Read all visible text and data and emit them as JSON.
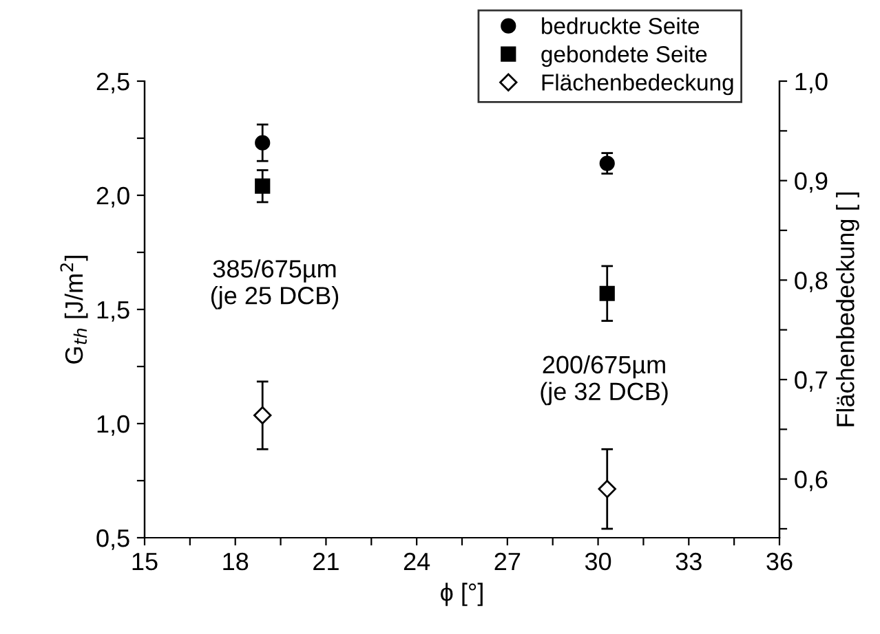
{
  "chart_data": {
    "type": "scatter",
    "xlabel": "ϕ [°]",
    "ylabel": "G$_{th}$ [J/m$^{2}$]",
    "y2label": "Flächenbedeckung [ ]",
    "xlim": [
      15,
      36
    ],
    "ylim": [
      0.5,
      2.5
    ],
    "y2lim": [
      0.541,
      1.0
    ],
    "xticks": [
      15,
      {
        "value": 16.5,
        "label": null
      },
      18,
      {
        "value": 19.5,
        "label": null
      },
      21,
      {
        "value": 22.5,
        "label": null
      },
      24,
      {
        "value": 25.5,
        "label": null
      },
      27,
      {
        "value": 28.5,
        "label": null
      },
      30,
      {
        "value": 31.5,
        "label": null
      },
      33,
      {
        "value": 34.5,
        "label": null
      },
      36
    ],
    "yticks": [
      {
        "value": 0.5,
        "label": "0,5"
      },
      {
        "value": 0.75,
        "label": null
      },
      {
        "value": 1.0,
        "label": "1,0"
      },
      {
        "value": 1.25,
        "label": null
      },
      {
        "value": 1.5,
        "label": "1,5"
      },
      {
        "value": 1.75,
        "label": null
      },
      {
        "value": 2.0,
        "label": "2,0"
      },
      {
        "value": 2.25,
        "label": null
      },
      {
        "value": 2.5,
        "label": "2,5"
      }
    ],
    "y2ticks": [
      {
        "value": 0.55,
        "label": null
      },
      {
        "value": 0.6,
        "label": "0,6"
      },
      {
        "value": 0.65,
        "label": null
      },
      {
        "value": 0.7,
        "label": "0,7"
      },
      {
        "value": 0.75,
        "label": null
      },
      {
        "value": 0.8,
        "label": "0,8"
      },
      {
        "value": 0.85,
        "label": null
      },
      {
        "value": 0.9,
        "label": "0,9"
      },
      {
        "value": 0.95,
        "label": null
      },
      {
        "value": 1.0,
        "label": "1,0"
      }
    ],
    "x": [
      18.9,
      30.3
    ],
    "series": [
      {
        "name": "bedruckte Seite",
        "color": "#000000",
        "marker": "circle",
        "values": [
          2.23,
          2.14
        ],
        "errors": [
          0.08,
          0.045
        ]
      },
      {
        "name": "gebondete Seite",
        "color": "#000000",
        "marker": "square",
        "values": [
          2.04,
          1.57
        ],
        "errors": [
          0.07,
          0.12
        ]
      },
      {
        "name": "Flächenbedeckung",
        "color": "#000000",
        "marker": "diamond",
        "axis": "y2",
        "values": [
          0.664,
          0.59
        ],
        "errors": [
          0.034,
          0.04
        ]
      }
    ],
    "annotations": [
      "385/675µm\n(je 25 DCB)",
      "200/675µm\n(je 32 DCB)"
    ],
    "legend": "top right",
    "grid": false
  }
}
